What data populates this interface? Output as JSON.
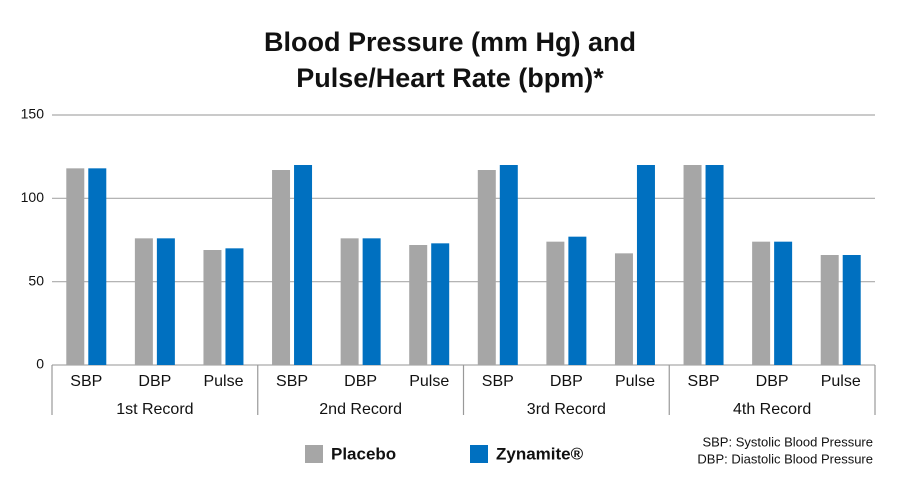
{
  "chart_data": {
    "type": "bar",
    "title": [
      "Blood Pressure (mm Hg) and",
      "Pulse/Heart Rate (bpm)*"
    ],
    "groups": [
      "1st Record",
      "2nd Record",
      "3rd Record",
      "4th Record"
    ],
    "categories": [
      "SBP",
      "DBP",
      "Pulse",
      "SBP",
      "DBP",
      "Pulse",
      "SBP",
      "DBP",
      "Pulse",
      "SBP",
      "DBP",
      "Pulse"
    ],
    "series": [
      {
        "name": "Placebo",
        "color": "#a6a6a6",
        "values": [
          118,
          76,
          69,
          117,
          76,
          72,
          117,
          74,
          67,
          120,
          74,
          66
        ]
      },
      {
        "name": "Zynamite®",
        "color": "#0070c0",
        "values": [
          118,
          76,
          70,
          120,
          76,
          73,
          120,
          77,
          120,
          120,
          74,
          66
        ]
      }
    ],
    "ylim": [
      0,
      150
    ],
    "yticks": [
      0,
      50,
      100,
      150
    ],
    "grid": true,
    "notes": [
      "SBP: Systolic Blood Pressure",
      "DBP: Diastolic Blood Pressure"
    ]
  }
}
